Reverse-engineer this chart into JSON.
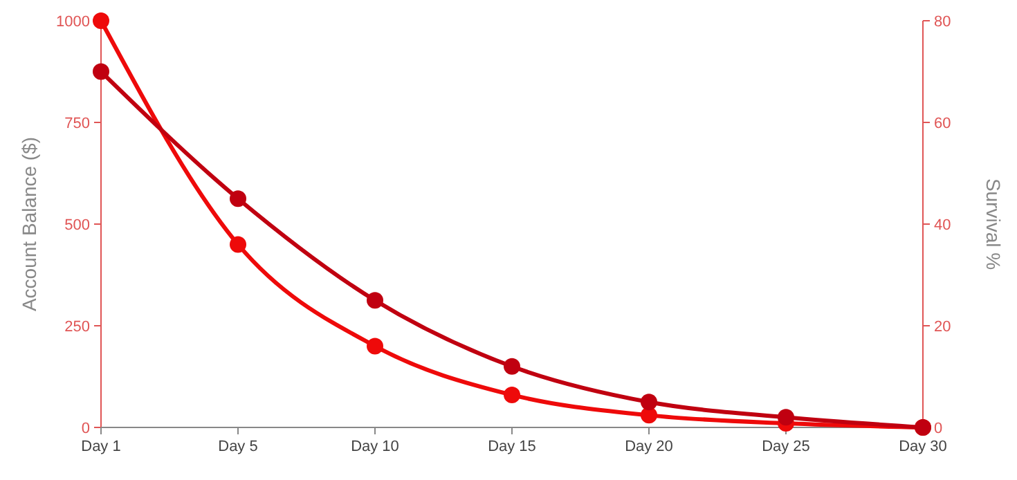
{
  "chart_data": {
    "type": "line",
    "categories": [
      "Day 1",
      "Day 5",
      "Day 10",
      "Day 15",
      "Day 20",
      "Day 25",
      "Day 30"
    ],
    "ylabel": "Account Balance ($)",
    "y2label": "Survival %",
    "ylim": [
      0,
      1000
    ],
    "yticks": [
      0,
      250,
      500,
      750,
      1000
    ],
    "y2lim": [
      0,
      80
    ],
    "y2ticks": [
      0,
      20,
      40,
      60,
      80
    ],
    "series": [
      {
        "color": "#ee0a0a",
        "values": [
          1000,
          450,
          200,
          80,
          30,
          10,
          0
        ]
      },
      {
        "color": "#c00010",
        "axis": "y2",
        "values": [
          70,
          45,
          25,
          12,
          5,
          2,
          0
        ]
      }
    ],
    "marker": "circle",
    "line_style": "solid",
    "grid": false
  }
}
